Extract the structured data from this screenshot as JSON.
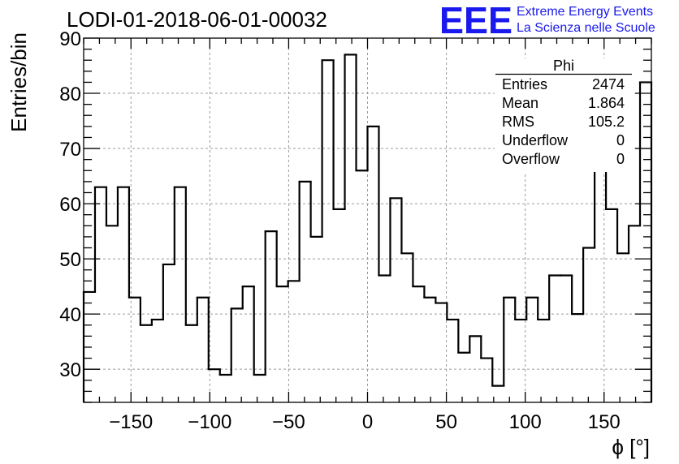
{
  "header": {
    "title": "LODI-01-2018-06-01-00032",
    "logo_text": "EEE",
    "logo_line1": "Extreme Energy Events",
    "logo_line2": "La Scienza nelle Scuole",
    "logo_color": "#1a1aee"
  },
  "stats": {
    "name": "Phi",
    "rows": [
      {
        "label": "Entries",
        "value": "2474"
      },
      {
        "label": "Mean",
        "value": "1.864"
      },
      {
        "label": "RMS",
        "value": "105.2"
      },
      {
        "label": "Underflow",
        "value": "0"
      },
      {
        "label": "Overflow",
        "value": "0"
      }
    ]
  },
  "chart_data": {
    "type": "bar",
    "style": "step-histogram",
    "title": "LODI-01-2018-06-01-00032",
    "xlabel": "ϕ [°]",
    "ylabel": "Entries/bin",
    "xlim": [
      -180,
      180
    ],
    "ylim": [
      24,
      90
    ],
    "bin_width": 7.2,
    "grid": true,
    "xticks": [
      -150,
      -100,
      -50,
      0,
      50,
      100,
      150
    ],
    "xtick_labels": [
      "−150",
      "−100",
      "−50",
      "0",
      "50",
      "100",
      "150"
    ],
    "yticks": [
      30,
      40,
      50,
      60,
      70,
      80,
      90
    ],
    "ytick_labels": [
      "30",
      "40",
      "50",
      "60",
      "70",
      "80",
      "90"
    ],
    "values": [
      44,
      63,
      56,
      63,
      43,
      38,
      39,
      49,
      63,
      38,
      43,
      30,
      29,
      41,
      45,
      29,
      55,
      45,
      46,
      64,
      54,
      86,
      59,
      87,
      66,
      74,
      47,
      61,
      51,
      45,
      43,
      42,
      39,
      33,
      36,
      32,
      27,
      43,
      39,
      43,
      39,
      47,
      47,
      40,
      52,
      71,
      59,
      51,
      56,
      82
    ]
  }
}
